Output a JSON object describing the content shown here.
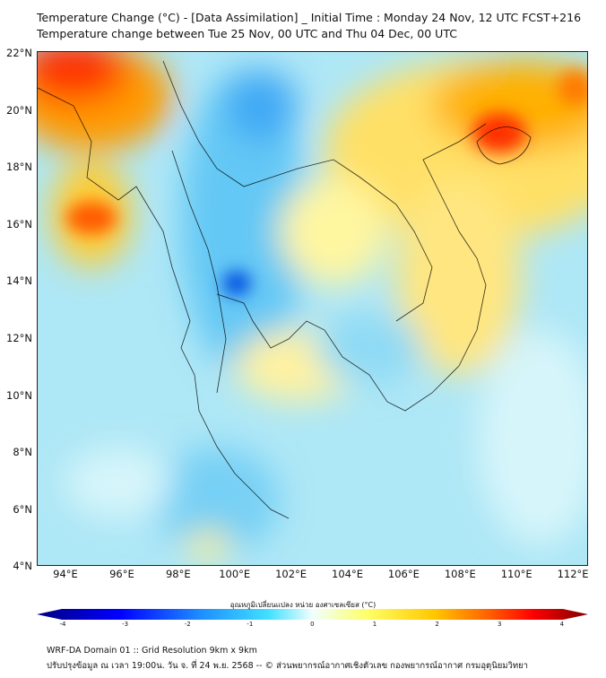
{
  "title": {
    "line1": "Temperature Change (°C) - [Data Assimilation] _ Initial Time : Monday 24 Nov, 12 UTC FCST+216",
    "line2": "Temperature change between Tue 25 Nov, 00 UTC and Thu 04 Dec, 00 UTC"
  },
  "axes": {
    "x_ticks": [
      "94°E",
      "96°E",
      "98°E",
      "100°E",
      "102°E",
      "104°E",
      "106°E",
      "108°E",
      "110°E",
      "112°E"
    ],
    "y_ticks": [
      "22°N",
      "20°N",
      "18°N",
      "16°N",
      "14°N",
      "12°N",
      "10°N",
      "8°N",
      "6°N",
      "4°N"
    ]
  },
  "colorbar": {
    "label": "อุณหภูมิเปลี่ยนแปลง หน่วย องศาเซลเซียส (°C)",
    "ticks": [
      "-4",
      "-3",
      "-2",
      "-1",
      "0",
      "1",
      "2",
      "3",
      "4"
    ],
    "colors": [
      "#00007f",
      "#0000ff",
      "#1e90ff",
      "#40e0ff",
      "#e0ffff",
      "#ffff66",
      "#ffc800",
      "#ff6000",
      "#ff0000",
      "#7f0000"
    ]
  },
  "footer": {
    "line1": "WRF-DA Domain 01 :: Grid Resolution 9km x 9km",
    "line2": "ปรับปรุงข้อมูล ณ เวลา 19:00น. วัน จ. ที่ 24 พ.ย. 2568 -- © ส่วนพยากรณ์อากาศเชิงตัวเลข กองพยากรณ์อากาศ กรมอุตุนิยมวิทยา"
  }
}
